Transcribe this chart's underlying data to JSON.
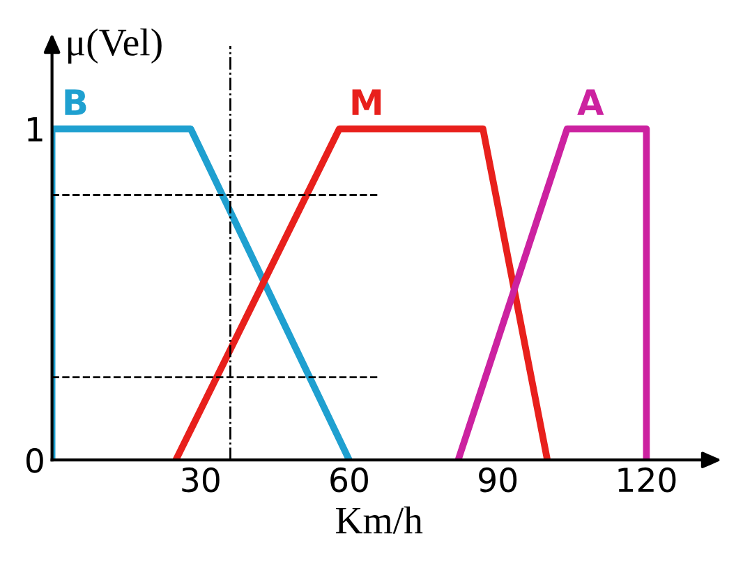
{
  "chart_data": {
    "type": "line",
    "xlabel": "Km/h",
    "ylabel": "μ(Vel)",
    "series": [
      {
        "name": "B",
        "color": "#1fa0d0",
        "x": [
          0,
          0,
          28,
          60
        ],
        "values": [
          0,
          1,
          1,
          0
        ]
      },
      {
        "name": "M",
        "color": "#e8201c",
        "x": [
          25,
          58,
          87,
          100
        ],
        "values": [
          0,
          1,
          1,
          0
        ]
      },
      {
        "name": "A",
        "color": "#cc22a0",
        "x": [
          82,
          104,
          120,
          120
        ],
        "values": [
          0,
          1,
          1,
          0
        ]
      }
    ],
    "xlim": [
      0,
      132
    ],
    "ylim": [
      0,
      1.25
    ],
    "xticks": [
      30,
      60,
      90,
      120
    ],
    "yticks": [
      0,
      1
    ],
    "ref_lines": [
      {
        "axis": "x",
        "value": 36,
        "color": "#000000",
        "line_style": "dotted"
      },
      {
        "axis": "y",
        "value": 0.8,
        "color": "#000000",
        "line_style": "dashed"
      },
      {
        "axis": "y",
        "value": 0.25,
        "color": "#000000",
        "line_style": "dashed"
      }
    ],
    "grid": false,
    "legend": false,
    "marker": "none",
    "line_style": "solid"
  }
}
